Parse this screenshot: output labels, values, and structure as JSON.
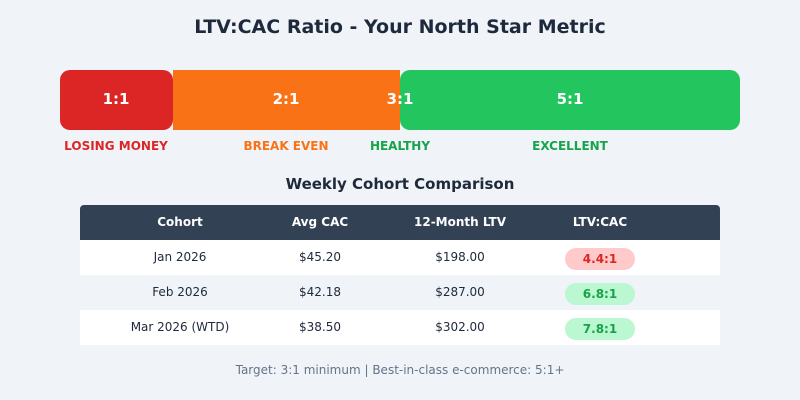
{
  "title": "LTV:CAC Ratio - Your North Star Metric",
  "scale": {
    "markers": [
      "1:1",
      "2:1",
      "3:1",
      "5:1"
    ],
    "zones": [
      {
        "label": "LOSING MONEY",
        "color": "#dc2626"
      },
      {
        "label": "BREAK EVEN",
        "color": "#f97316"
      },
      {
        "label": "HEALTHY",
        "color": "#16a34a"
      },
      {
        "label": "EXCELLENT",
        "color": "#16a34a"
      }
    ]
  },
  "table": {
    "title": "Weekly Cohort Comparison",
    "headers": [
      "Cohort",
      "Avg CAC",
      "12-Month LTV",
      "LTV:CAC"
    ],
    "rows": [
      {
        "cohort": "Jan 2026",
        "cac": "$45.20",
        "ltv": "$198.00",
        "ratio": "4.4:1",
        "status": "red"
      },
      {
        "cohort": "Feb 2026",
        "cac": "$42.18",
        "ltv": "$287.00",
        "ratio": "6.8:1",
        "status": "green"
      },
      {
        "cohort": "Mar 2026 (WTD)",
        "cac": "$38.50",
        "ltv": "$302.00",
        "ratio": "7.8:1",
        "status": "green"
      }
    ]
  },
  "footer": "Target: 3:1 minimum | Best-in-class e-commerce: 5:1+"
}
